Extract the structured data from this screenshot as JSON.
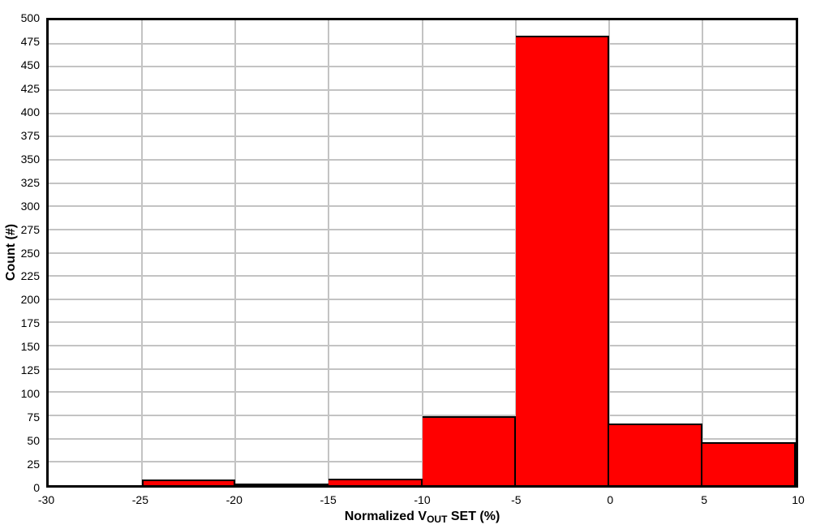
{
  "chart_data": {
    "type": "bar",
    "subtype": "histogram",
    "title": "",
    "xlabel": "Normalized V_OUT SET (%)",
    "xlabel_parts": {
      "pre": "Normalized V",
      "sub": "OUT",
      "post": " SET (%)"
    },
    "ylabel": "Count (#)",
    "xlim": [
      -30,
      10
    ],
    "ylim": [
      0,
      500
    ],
    "x_tick_step": 5,
    "y_tick_step": 25,
    "x_ticks": [
      -30,
      -25,
      -20,
      -15,
      -10,
      -5,
      0,
      5,
      10
    ],
    "y_ticks": [
      0,
      25,
      50,
      75,
      100,
      125,
      150,
      175,
      200,
      225,
      250,
      275,
      300,
      325,
      350,
      375,
      400,
      425,
      450,
      475,
      500
    ],
    "bin_width": 5,
    "bins": [
      {
        "x0": -30,
        "x1": -25,
        "count": 0
      },
      {
        "x0": -25,
        "x1": -20,
        "count": 6
      },
      {
        "x0": -20,
        "x1": -15,
        "count": 2
      },
      {
        "x0": -15,
        "x1": -10,
        "count": 7
      },
      {
        "x0": -10,
        "x1": -5,
        "count": 74
      },
      {
        "x0": -5,
        "x1": 0,
        "count": 483
      },
      {
        "x0": 0,
        "x1": 5,
        "count": 66
      },
      {
        "x0": 5,
        "x1": 10,
        "count": 46
      }
    ],
    "grid": true,
    "legend": "none",
    "colors": {
      "bar_fill": "#ff0000",
      "bar_border": "#000000",
      "gridline": "#c3c3c3",
      "axis_frame": "#000000",
      "background": "#ffffff",
      "text": "#000000"
    }
  }
}
